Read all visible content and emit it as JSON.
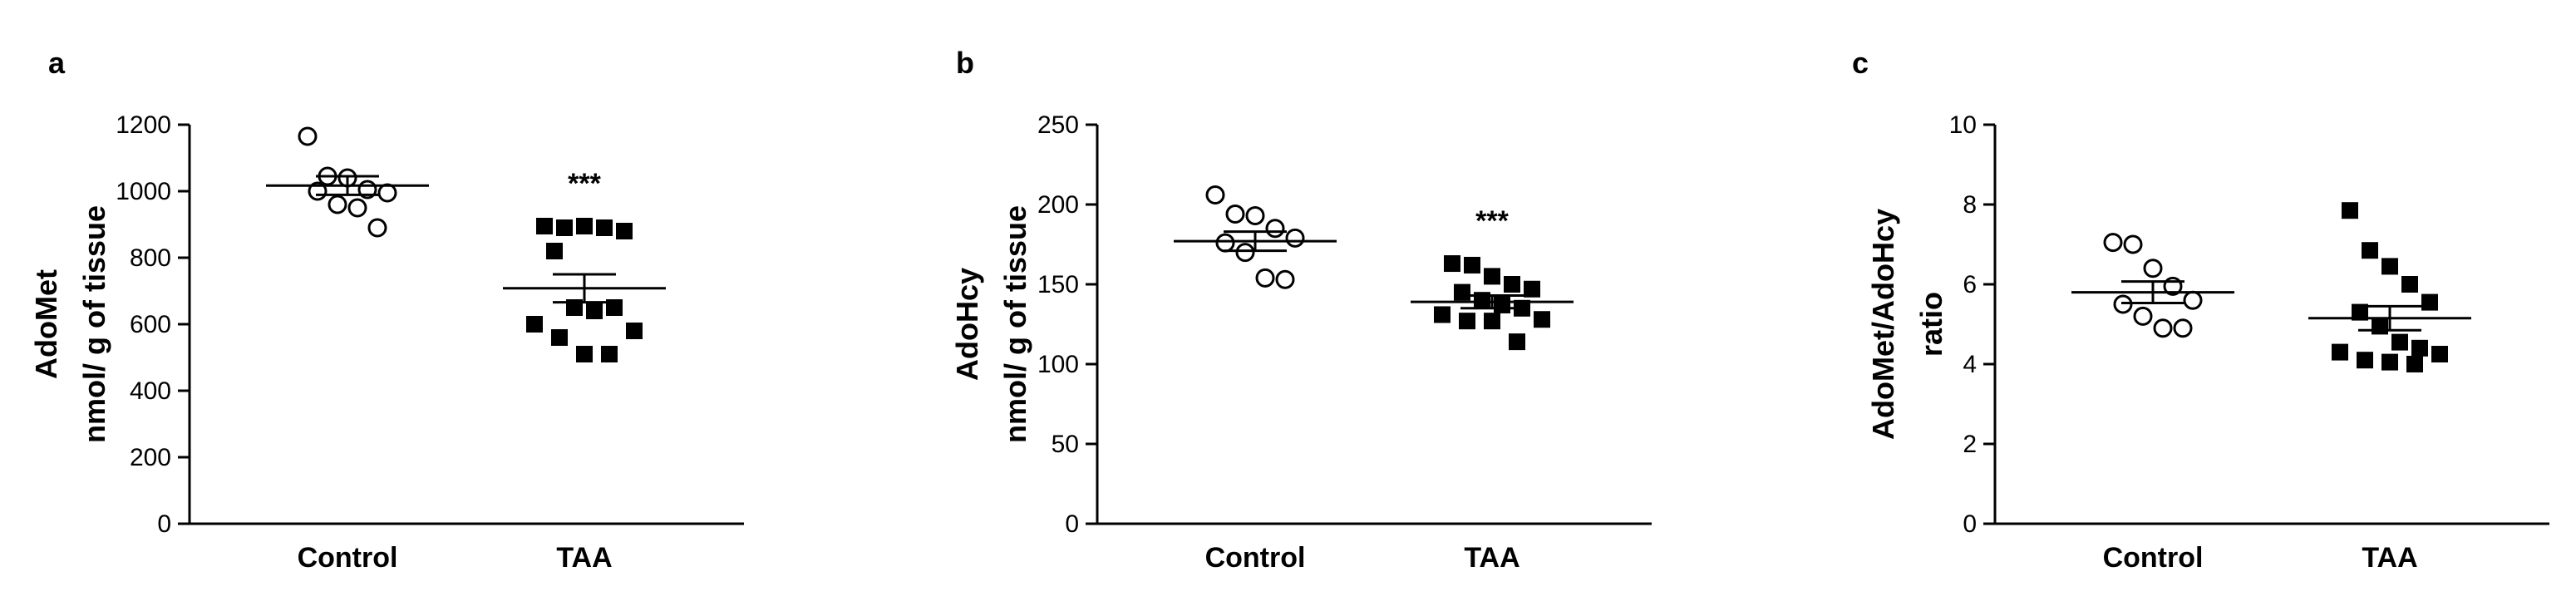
{
  "figure": {
    "panels": [
      "a",
      "b",
      "c"
    ]
  },
  "chart_data": [
    {
      "panel": "a",
      "type": "scatter",
      "categories": [
        "Control",
        "TAA"
      ],
      "ylabel": [
        "AdoMet",
        "nmol/ g of tissue"
      ],
      "ylim": [
        0,
        1200
      ],
      "yticks": [
        0,
        200,
        400,
        600,
        800,
        1000,
        1200
      ],
      "significance": {
        "TAA": "***"
      },
      "series": [
        {
          "category": "Control",
          "marker": "open-circle",
          "values": [
            1165,
            1045,
            1040,
            1005,
            995,
            1000,
            960,
            950,
            890
          ],
          "mean": 1017,
          "sem": 28
        },
        {
          "category": "TAA",
          "marker": "filled-square",
          "values": [
            895,
            890,
            895,
            890,
            880,
            820,
            650,
            640,
            650,
            600,
            580,
            560,
            510,
            510
          ],
          "mean": 708,
          "sem": 42
        }
      ]
    },
    {
      "panel": "b",
      "type": "scatter",
      "categories": [
        "Control",
        "TAA"
      ],
      "ylabel": [
        "AdoHcy",
        "nmol/ g of tissue"
      ],
      "ylim": [
        0,
        250
      ],
      "yticks": [
        0,
        50,
        100,
        150,
        200,
        250
      ],
      "significance": {
        "TAA": "***"
      },
      "series": [
        {
          "category": "Control",
          "marker": "open-circle",
          "values": [
            206,
            194,
            193,
            185,
            179,
            176,
            170,
            154,
            153
          ],
          "mean": 177,
          "sem": 6
        },
        {
          "category": "TAA",
          "marker": "filled-square",
          "values": [
            163,
            162,
            155,
            150,
            147,
            145,
            140,
            137,
            135,
            131,
            128,
            127,
            127,
            114
          ],
          "mean": 139,
          "sem": 4
        }
      ]
    },
    {
      "panel": "c",
      "type": "scatter",
      "categories": [
        "Control",
        "TAA"
      ],
      "ylabel": [
        "AdoMet/AdoHcy",
        "ratio"
      ],
      "ylim": [
        0,
        10
      ],
      "yticks": [
        0,
        2,
        4,
        6,
        8,
        10
      ],
      "significance": {},
      "series": [
        {
          "category": "Control",
          "marker": "open-circle",
          "values": [
            7.05,
            7.0,
            6.4,
            5.95,
            5.6,
            5.5,
            5.2,
            4.9,
            4.9
          ],
          "mean": 5.8,
          "sem": 0.27
        },
        {
          "category": "TAA",
          "marker": "filled-square",
          "values": [
            7.85,
            6.85,
            6.45,
            6.0,
            5.55,
            5.3,
            4.95,
            4.55,
            4.4,
            4.3,
            4.25,
            4.1,
            4.05,
            4.0
          ],
          "mean": 5.15,
          "sem": 0.3
        }
      ]
    }
  ]
}
